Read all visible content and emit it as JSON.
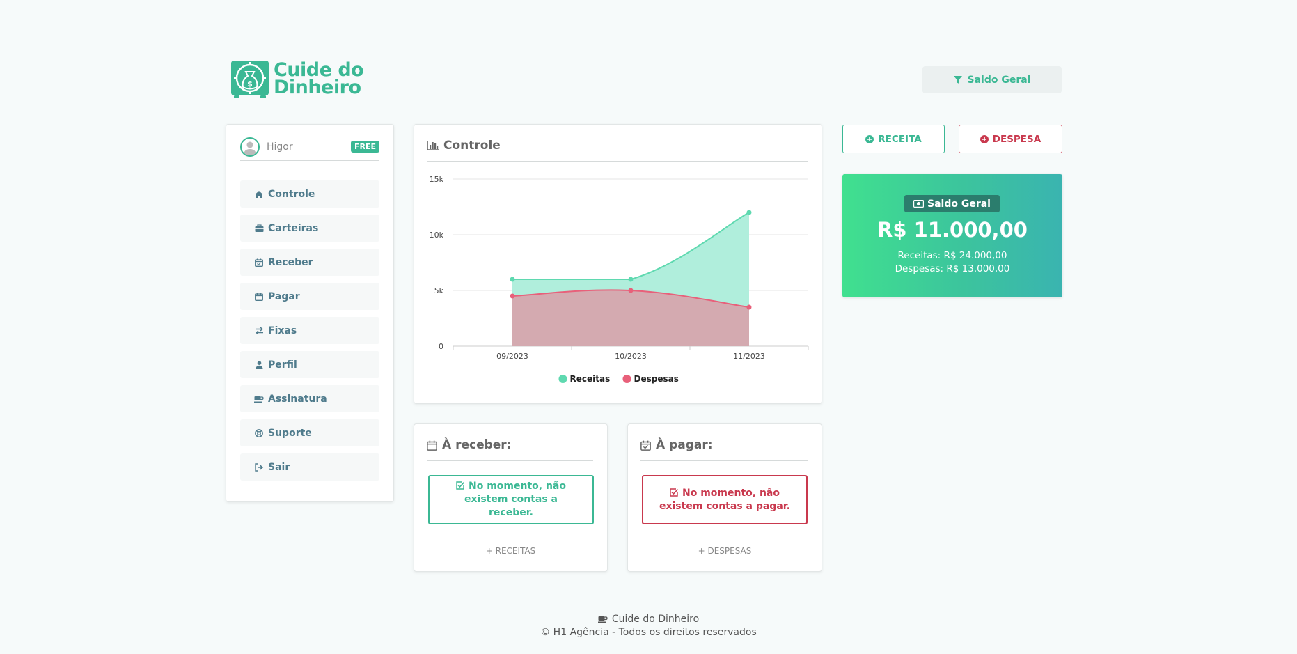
{
  "brand": {
    "name_line1": "Cuide do",
    "name_line2": "Dinheiro",
    "color": "#3bb894"
  },
  "header": {
    "filter_label": "Saldo Geral",
    "filter_icon": "filter-icon"
  },
  "user": {
    "name": "Higor",
    "plan_badge": "FREE"
  },
  "nav": {
    "items": [
      {
        "label": "Controle",
        "icon": "home-icon"
      },
      {
        "label": "Carteiras",
        "icon": "briefcase-icon"
      },
      {
        "label": "Receber",
        "icon": "calendar-check-icon"
      },
      {
        "label": "Pagar",
        "icon": "calendar-icon"
      },
      {
        "label": "Fixas",
        "icon": "exchange-icon"
      },
      {
        "label": "Perfil",
        "icon": "user-icon"
      },
      {
        "label": "Assinatura",
        "icon": "coffee-icon"
      },
      {
        "label": "Suporte",
        "icon": "lifebuoy-icon"
      },
      {
        "label": "Sair",
        "icon": "sign-out-icon"
      }
    ]
  },
  "chart_card": {
    "title": "Controle",
    "icon": "bar-chart-icon"
  },
  "chart_data": {
    "type": "area",
    "categories": [
      "09/2023",
      "10/2023",
      "11/2023"
    ],
    "series": [
      {
        "name": "Receitas",
        "values": [
          6000,
          6000,
          12000
        ],
        "color": "#5fd9b0",
        "fill": "#aeeedb"
      },
      {
        "name": "Despesas",
        "values": [
          4500,
          5000,
          3500
        ],
        "color": "#e8607a",
        "fill": "#d4a8ae"
      }
    ],
    "yticks": [
      "0",
      "5k",
      "10k",
      "15k"
    ],
    "ylim": [
      0,
      15000
    ],
    "legend_position": "bottom",
    "grid": true
  },
  "receivables": {
    "title": "À receber:",
    "icon": "calendar-icon",
    "empty_message": "No momento, não existem contas a receber.",
    "link": "+ RECEITAS"
  },
  "payables": {
    "title": "À pagar:",
    "icon": "calendar-check-icon",
    "empty_message": "No momento, não existem contas a pagar.",
    "link": "+ DESPESAS"
  },
  "actions": {
    "receita_label": "RECEITA",
    "despesa_label": "DESPESA"
  },
  "balance": {
    "badge": "Saldo Geral",
    "value": "R$ 11.000,00",
    "receitas": "Receitas: R$ 24.000,00",
    "despesas": "Despesas: R$ 13.000,00"
  },
  "footer": {
    "app_name": "Cuide do Dinheiro",
    "copyright": "© H1 Agência - Todos os direitos reservados"
  }
}
